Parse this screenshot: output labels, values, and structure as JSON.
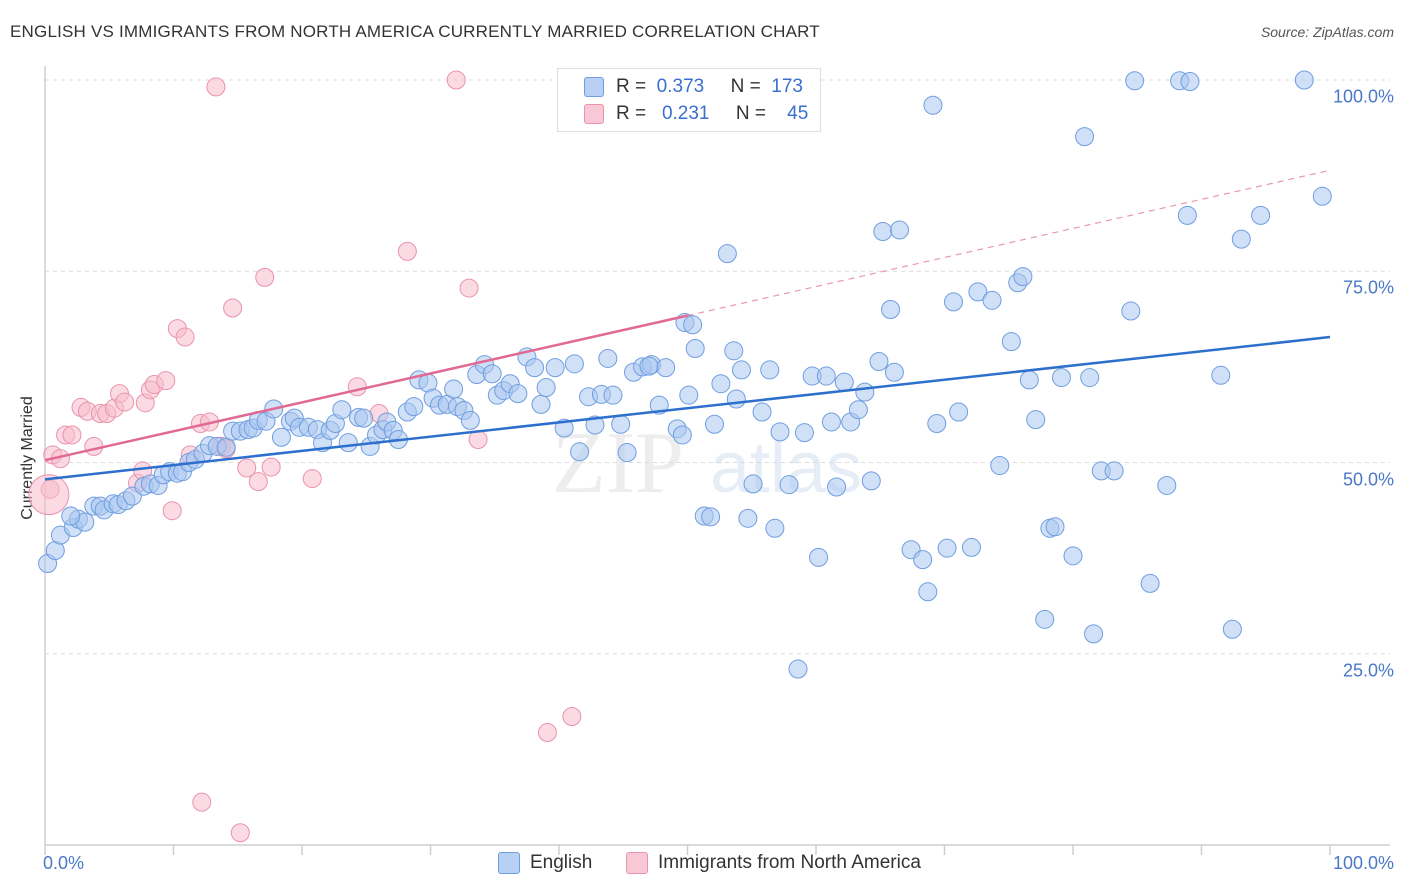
{
  "header": {
    "title": "ENGLISH VS IMMIGRANTS FROM NORTH AMERICA CURRENTLY MARRIED CORRELATION CHART",
    "source": "Source: ZipAtlas.com"
  },
  "legend_top": {
    "rows": [
      {
        "r_label": "R =",
        "r_value": "0.373",
        "n_label": "N =",
        "n_value": "173"
      },
      {
        "r_label": "R =",
        "r_value": "0.231",
        "n_label": "N =",
        "n_value": "45"
      }
    ]
  },
  "legend_bottom": {
    "items": [
      "English",
      "Immigrants from North America"
    ]
  },
  "watermark": {
    "zip": "ZIP",
    "atlas": "atlas"
  },
  "chart_data": {
    "type": "scatter",
    "title": "ENGLISH VS IMMIGRANTS FROM NORTH AMERICA CURRENTLY MARRIED CORRELATION CHART",
    "xlabel": "",
    "ylabel": "Currently Married",
    "xlim": [
      0,
      100
    ],
    "ylim": [
      0,
      100
    ],
    "x_tick_labels": [
      "0.0%",
      "100.0%"
    ],
    "y_tick_labels": [
      "25.0%",
      "50.0%",
      "75.0%",
      "100.0%"
    ],
    "y_tick_values": [
      25,
      50,
      75,
      100
    ],
    "grid": true,
    "legend_position": "top-center",
    "colors": {
      "english_fill": "#a9c7f0",
      "english_stroke": "#6f9ee0",
      "english_line": "#2d6fcc",
      "immigrants_fill": "#f7bccc",
      "immigrants_stroke": "#e993ad",
      "immigrants_line": "#e06a93",
      "tick_label": "#4a78c8"
    },
    "series": [
      {
        "name": "English",
        "r": 0.373,
        "n": 173,
        "trend": {
          "x": [
            0,
            100
          ],
          "y": [
            47.8,
            66.4
          ]
        },
        "points": [
          [
            0.2,
            36.8
          ],
          [
            0.8,
            38.5
          ],
          [
            1.2,
            40.5
          ],
          [
            2.2,
            41.5
          ],
          [
            2.6,
            42.6
          ],
          [
            3.1,
            42.2
          ],
          [
            2.0,
            43.0
          ],
          [
            3.8,
            44.3
          ],
          [
            4.3,
            44.3
          ],
          [
            4.6,
            43.8
          ],
          [
            5.3,
            44.6
          ],
          [
            5.7,
            44.5
          ],
          [
            6.3,
            45.0
          ],
          [
            6.8,
            45.6
          ],
          [
            7.7,
            46.9
          ],
          [
            8.2,
            47.2
          ],
          [
            8.8,
            47.0
          ],
          [
            9.2,
            48.4
          ],
          [
            9.7,
            48.8
          ],
          [
            10.3,
            48.6
          ],
          [
            10.7,
            48.8
          ],
          [
            11.2,
            50.0
          ],
          [
            11.7,
            50.4
          ],
          [
            12.3,
            51.2
          ],
          [
            12.8,
            52.2
          ],
          [
            13.4,
            52.1
          ],
          [
            14.1,
            52.0
          ],
          [
            14.6,
            54.1
          ],
          [
            15.2,
            54.1
          ],
          [
            15.8,
            54.3
          ],
          [
            16.2,
            54.5
          ],
          [
            16.6,
            55.5
          ],
          [
            17.2,
            55.4
          ],
          [
            17.8,
            57.0
          ],
          [
            18.4,
            53.3
          ],
          [
            19.1,
            55.4
          ],
          [
            19.4,
            55.8
          ],
          [
            19.8,
            54.6
          ],
          [
            20.5,
            54.6
          ],
          [
            21.2,
            54.3
          ],
          [
            21.6,
            52.6
          ],
          [
            22.2,
            54.2
          ],
          [
            22.6,
            55.1
          ],
          [
            23.1,
            56.9
          ],
          [
            23.6,
            52.6
          ],
          [
            24.4,
            55.9
          ],
          [
            24.8,
            55.8
          ],
          [
            25.3,
            52.1
          ],
          [
            25.8,
            53.6
          ],
          [
            26.3,
            54.3
          ],
          [
            26.6,
            55.3
          ],
          [
            27.1,
            54.2
          ],
          [
            27.5,
            53.0
          ],
          [
            28.2,
            56.6
          ],
          [
            28.7,
            57.3
          ],
          [
            29.1,
            60.8
          ],
          [
            29.8,
            60.4
          ],
          [
            30.2,
            58.4
          ],
          [
            30.7,
            57.5
          ],
          [
            31.3,
            57.6
          ],
          [
            31.8,
            59.6
          ],
          [
            32.1,
            57.3
          ],
          [
            32.6,
            56.8
          ],
          [
            33.1,
            55.5
          ],
          [
            33.6,
            61.5
          ],
          [
            34.2,
            62.8
          ],
          [
            34.8,
            61.6
          ],
          [
            35.2,
            58.8
          ],
          [
            35.7,
            59.4
          ],
          [
            36.2,
            60.3
          ],
          [
            36.8,
            59.0
          ],
          [
            37.5,
            63.8
          ],
          [
            38.1,
            62.4
          ],
          [
            38.6,
            57.6
          ],
          [
            39.0,
            59.8
          ],
          [
            39.7,
            62.4
          ],
          [
            40.4,
            54.5
          ],
          [
            41.2,
            62.9
          ],
          [
            41.6,
            51.4
          ],
          [
            42.3,
            58.6
          ],
          [
            42.8,
            54.9
          ],
          [
            43.3,
            58.9
          ],
          [
            43.8,
            63.6
          ],
          [
            44.2,
            58.8
          ],
          [
            44.8,
            55.0
          ],
          [
            45.3,
            51.3
          ],
          [
            45.8,
            61.8
          ],
          [
            46.5,
            62.5
          ],
          [
            47.2,
            62.8
          ],
          [
            47.8,
            57.5
          ],
          [
            48.3,
            62.4
          ],
          [
            49.2,
            54.4
          ],
          [
            49.6,
            53.6
          ],
          [
            49.8,
            68.3
          ],
          [
            50.1,
            58.8
          ],
          [
            50.6,
            64.9
          ],
          [
            51.3,
            43.0
          ],
          [
            51.8,
            42.9
          ],
          [
            52.1,
            55.0
          ],
          [
            52.6,
            60.3
          ],
          [
            53.1,
            77.3
          ],
          [
            53.6,
            64.6
          ],
          [
            53.8,
            58.3
          ],
          [
            54.2,
            62.1
          ],
          [
            54.7,
            42.7
          ],
          [
            55.1,
            47.2
          ],
          [
            55.8,
            56.6
          ],
          [
            56.4,
            62.1
          ],
          [
            56.8,
            41.4
          ],
          [
            57.2,
            54.0
          ],
          [
            57.9,
            47.1
          ],
          [
            58.6,
            23.0
          ],
          [
            59.1,
            53.9
          ],
          [
            59.7,
            61.3
          ],
          [
            60.2,
            37.6
          ],
          [
            60.8,
            61.3
          ],
          [
            61.2,
            55.3
          ],
          [
            61.6,
            46.8
          ],
          [
            62.2,
            60.5
          ],
          [
            62.7,
            55.3
          ],
          [
            63.3,
            56.9
          ],
          [
            63.8,
            59.2
          ],
          [
            64.3,
            47.6
          ],
          [
            64.9,
            63.2
          ],
          [
            65.2,
            80.2
          ],
          [
            65.8,
            70.0
          ],
          [
            66.1,
            61.8
          ],
          [
            66.5,
            80.4
          ],
          [
            67.4,
            38.6
          ],
          [
            68.3,
            37.3
          ],
          [
            68.7,
            33.1
          ],
          [
            69.1,
            96.7
          ],
          [
            69.4,
            55.1
          ],
          [
            70.2,
            38.8
          ],
          [
            70.7,
            71.0
          ],
          [
            71.1,
            56.6
          ],
          [
            72.1,
            38.9
          ],
          [
            72.6,
            72.3
          ],
          [
            73.7,
            71.2
          ],
          [
            74.3,
            49.6
          ],
          [
            75.2,
            65.8
          ],
          [
            75.7,
            73.5
          ],
          [
            76.1,
            74.3
          ],
          [
            76.6,
            60.8
          ],
          [
            77.1,
            55.6
          ],
          [
            77.8,
            29.5
          ],
          [
            78.2,
            41.4
          ],
          [
            78.6,
            41.6
          ],
          [
            79.1,
            61.1
          ],
          [
            80.0,
            37.8
          ],
          [
            80.9,
            92.6
          ],
          [
            81.3,
            61.1
          ],
          [
            81.6,
            27.6
          ],
          [
            82.2,
            48.9
          ],
          [
            83.2,
            48.9
          ],
          [
            84.5,
            69.8
          ],
          [
            84.8,
            99.9
          ],
          [
            86.0,
            34.2
          ],
          [
            87.3,
            47.0
          ],
          [
            88.3,
            99.9
          ],
          [
            88.9,
            82.3
          ],
          [
            89.1,
            99.8
          ],
          [
            91.5,
            61.4
          ],
          [
            92.4,
            28.2
          ],
          [
            93.1,
            79.2
          ],
          [
            94.6,
            82.3
          ],
          [
            98.0,
            100.0
          ],
          [
            99.4,
            84.8
          ],
          [
            50.4,
            68.0
          ],
          [
            47.0,
            62.6
          ]
        ]
      },
      {
        "name": "Immigrants from North America",
        "r": 0.231,
        "n": 45,
        "trend": {
          "x": [
            0,
            50
          ],
          "y": [
            50.3,
            69.2
          ]
        },
        "trend_dashed_extension": {
          "x": [
            50,
            100
          ],
          "y": [
            69.2,
            88.2
          ]
        },
        "points": [
          [
            0.4,
            46.5
          ],
          [
            0.6,
            51.0
          ],
          [
            1.2,
            50.5
          ],
          [
            1.6,
            53.6
          ],
          [
            2.1,
            53.6
          ],
          [
            2.8,
            57.2
          ],
          [
            3.3,
            56.7
          ],
          [
            3.8,
            52.1
          ],
          [
            4.3,
            56.4
          ],
          [
            4.8,
            56.4
          ],
          [
            5.4,
            57.1
          ],
          [
            5.8,
            59.0
          ],
          [
            6.2,
            57.9
          ],
          [
            7.2,
            47.3
          ],
          [
            7.6,
            48.9
          ],
          [
            7.8,
            57.8
          ],
          [
            8.2,
            59.5
          ],
          [
            8.5,
            60.2
          ],
          [
            9.4,
            60.7
          ],
          [
            9.9,
            43.7
          ],
          [
            10.3,
            67.5
          ],
          [
            10.9,
            66.4
          ],
          [
            11.3,
            51.0
          ],
          [
            12.1,
            55.1
          ],
          [
            12.8,
            55.3
          ],
          [
            13.3,
            99.1
          ],
          [
            13.7,
            52.1
          ],
          [
            14.1,
            51.8
          ],
          [
            14.6,
            70.2
          ],
          [
            15.7,
            49.3
          ],
          [
            16.6,
            47.5
          ],
          [
            17.1,
            74.2
          ],
          [
            17.6,
            49.4
          ],
          [
            20.8,
            47.9
          ],
          [
            24.3,
            59.9
          ],
          [
            26.0,
            56.4
          ],
          [
            28.2,
            77.6
          ],
          [
            32.0,
            100.0
          ],
          [
            33.0,
            72.8
          ],
          [
            33.7,
            53.0
          ],
          [
            39.1,
            14.7
          ],
          [
            41.0,
            16.8
          ],
          [
            12.2,
            5.6
          ],
          [
            15.2,
            1.6
          ],
          [
            0.3,
            45.8
          ]
        ]
      }
    ]
  }
}
